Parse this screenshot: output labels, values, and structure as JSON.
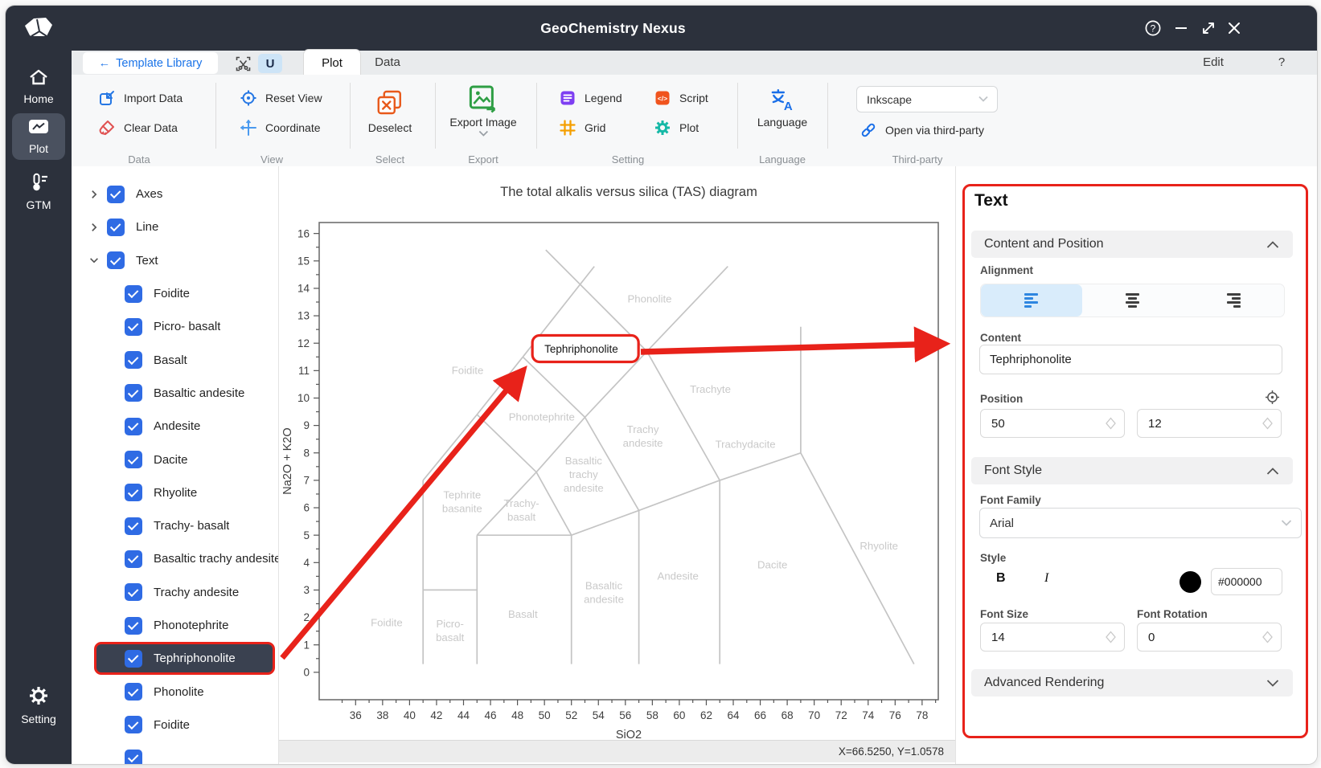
{
  "window": {
    "title": "GeoChemistry Nexus"
  },
  "tabstrip": {
    "back_arrow": "←",
    "template_library": "Template Library",
    "u_button": "U",
    "plot_tab": "Plot",
    "data_tab": "Data",
    "edit": "Edit",
    "help": "?"
  },
  "ribbon": {
    "import_data": "Import Data",
    "clear_data": "Clear Data",
    "caption_data": "Data",
    "reset_view": "Reset View",
    "coordinate": "Coordinate",
    "caption_view": "View",
    "deselect": "Deselect",
    "caption_select": "Select",
    "export_image": "Export Image",
    "caption_export": "Export",
    "legend": "Legend",
    "grid": "Grid",
    "script": "Script",
    "plot": "Plot",
    "caption_setting": "Setting",
    "language": "Language",
    "caption_language": "Language",
    "inkscape": "Inkscape",
    "open_third_party": "Open via third-party",
    "caption_third_party": "Third-party"
  },
  "sidebar": {
    "home": "Home",
    "plot": "Plot",
    "gtm": "GTM",
    "setting": "Setting"
  },
  "tree": {
    "parents": [
      {
        "label": "Axes"
      },
      {
        "label": "Line"
      },
      {
        "label": "Text"
      }
    ],
    "children": [
      "Foidite",
      "Picro- basalt",
      "Basalt",
      "Basaltic andesite",
      "Andesite",
      "Dacite",
      "Rhyolite",
      "Trachy- basalt",
      "Basaltic trachy andesite",
      "Trachy andesite",
      "Phonotephrite",
      "Tephriphonolite",
      "Phonolite",
      "Foidite"
    ],
    "selected_index": 11,
    "has_partial_row": true
  },
  "chart_data": {
    "type": "line",
    "title": "The total alkalis versus silica (TAS) diagram",
    "xlabel": "SiO2",
    "ylabel": "Na2O + K2O",
    "xlim": [
      33.3,
      79.2
    ],
    "ylim": [
      -1,
      16.4
    ],
    "xticks": [
      36,
      38,
      40,
      42,
      44,
      46,
      48,
      50,
      52,
      54,
      56,
      58,
      60,
      62,
      64,
      66,
      68,
      70,
      72,
      74,
      76,
      78
    ],
    "yticks": [
      0,
      1,
      2,
      3,
      4,
      5,
      6,
      7,
      8,
      9,
      10,
      11,
      12,
      13,
      14,
      15,
      16
    ],
    "grid": false,
    "legend_shown": false,
    "boundaries": [
      [
        [
          41,
          0.3
        ],
        [
          41,
          7
        ]
      ],
      [
        [
          41,
          3
        ],
        [
          45,
          3
        ]
      ],
      [
        [
          45,
          0.3
        ],
        [
          45,
          5
        ]
      ],
      [
        [
          52,
          0.3
        ],
        [
          52,
          5
        ]
      ],
      [
        [
          57,
          0.3
        ],
        [
          57,
          5.9
        ]
      ],
      [
        [
          63,
          0.3
        ],
        [
          63,
          7
        ]
      ],
      [
        [
          77.4,
          0.3
        ],
        [
          69,
          8
        ]
      ],
      [
        [
          69,
          8
        ],
        [
          69,
          12.6
        ]
      ],
      [
        [
          45,
          5
        ],
        [
          52,
          5
        ]
      ],
      [
        [
          52,
          5
        ],
        [
          57,
          5.9
        ]
      ],
      [
        [
          57,
          5.9
        ],
        [
          63,
          7
        ]
      ],
      [
        [
          63,
          7
        ],
        [
          69,
          8
        ]
      ],
      [
        [
          41,
          7
        ],
        [
          45,
          9.4
        ]
      ],
      [
        [
          45,
          9.4
        ],
        [
          48.4,
          11.5
        ]
      ],
      [
        [
          48.4,
          11.5
        ],
        [
          53.7,
          14.8
        ]
      ],
      [
        [
          50.1,
          15.4
        ],
        [
          57.6,
          11.7
        ]
      ],
      [
        [
          45,
          9.4
        ],
        [
          49.4,
          7.3
        ]
      ],
      [
        [
          45,
          5
        ],
        [
          49.4,
          7.3
        ]
      ],
      [
        [
          49.4,
          7.3
        ],
        [
          52,
          5
        ]
      ],
      [
        [
          49.4,
          7.3
        ],
        [
          53,
          9.3
        ]
      ],
      [
        [
          48.4,
          11.5
        ],
        [
          53,
          9.3
        ]
      ],
      [
        [
          53,
          9.3
        ],
        [
          57,
          5.9
        ]
      ],
      [
        [
          53,
          9.3
        ],
        [
          57.6,
          11.7
        ]
      ],
      [
        [
          57.6,
          11.7
        ],
        [
          63,
          7
        ]
      ],
      [
        [
          57.6,
          11.7
        ],
        [
          63.6,
          14.8
        ]
      ]
    ],
    "field_labels": [
      {
        "lines": [
          "Foidite"
        ],
        "x": 44.3,
        "y": 11
      },
      {
        "lines": [
          "Phonolite"
        ],
        "x": 57.8,
        "y": 13.6
      },
      {
        "lines": [
          "Trachyte"
        ],
        "x": 62.3,
        "y": 10.3
      },
      {
        "lines": [
          "Phonotephrite"
        ],
        "x": 49.8,
        "y": 9.3
      },
      {
        "lines": [
          "Trachy",
          "andesite"
        ],
        "x": 57.3,
        "y": 8.6
      },
      {
        "lines": [
          "Trachydacite"
        ],
        "x": 64.9,
        "y": 8.3
      },
      {
        "lines": [
          "Basaltic",
          "trachy",
          "andesite"
        ],
        "x": 52.9,
        "y": 7.2
      },
      {
        "lines": [
          "Tephrite",
          "basanite"
        ],
        "x": 43.9,
        "y": 6.2
      },
      {
        "lines": [
          "Trachy-",
          "basalt"
        ],
        "x": 48.3,
        "y": 5.9
      },
      {
        "lines": [
          "Rhyolite"
        ],
        "x": 74.8,
        "y": 4.6
      },
      {
        "lines": [
          "Dacite"
        ],
        "x": 66.9,
        "y": 3.9
      },
      {
        "lines": [
          "Andesite"
        ],
        "x": 59.9,
        "y": 3.5
      },
      {
        "lines": [
          "Basaltic",
          "andesite"
        ],
        "x": 54.4,
        "y": 2.9
      },
      {
        "lines": [
          "Basalt"
        ],
        "x": 48.4,
        "y": 2.1
      },
      {
        "lines": [
          "Picro-",
          "basalt"
        ],
        "x": 43,
        "y": 1.5
      },
      {
        "lines": [
          "Foidite"
        ],
        "x": 38.3,
        "y": 1.8
      }
    ],
    "annotated_label": {
      "text": "Tephriphonolite",
      "x": 50,
      "y": 11.8
    }
  },
  "statusbar": {
    "coordinates": "X=66.5250, Y=1.0578"
  },
  "inspector": {
    "title": "Text",
    "content_position": {
      "header": "Content and Position",
      "alignment_label": "Alignment",
      "content_label": "Content",
      "content_value": "Tephriphonolite",
      "position_label": "Position",
      "position_x": "50",
      "position_y": "12"
    },
    "font_style": {
      "header": "Font Style",
      "font_family_label": "Font Family",
      "font_family_value": "Arial",
      "style_label": "Style",
      "bold_label": "B",
      "italic_label": "I",
      "color_value": "#000000",
      "font_size_label": "Font Size",
      "font_size_value": "14",
      "font_rotation_label": "Font Rotation",
      "font_rotation_value": "0"
    },
    "advanced": {
      "header": "Advanced Rendering"
    }
  },
  "colors": {
    "annotation_red": "#e8221a",
    "accent_blue": "#2b7de9",
    "checkbox_blue": "#2f6be4",
    "titlebar_dark": "#2c313c",
    "selected_row_bg": "#3a4150",
    "boundary_gray": "#c4c4c4",
    "field_label_gray": "#c9c9c9"
  }
}
